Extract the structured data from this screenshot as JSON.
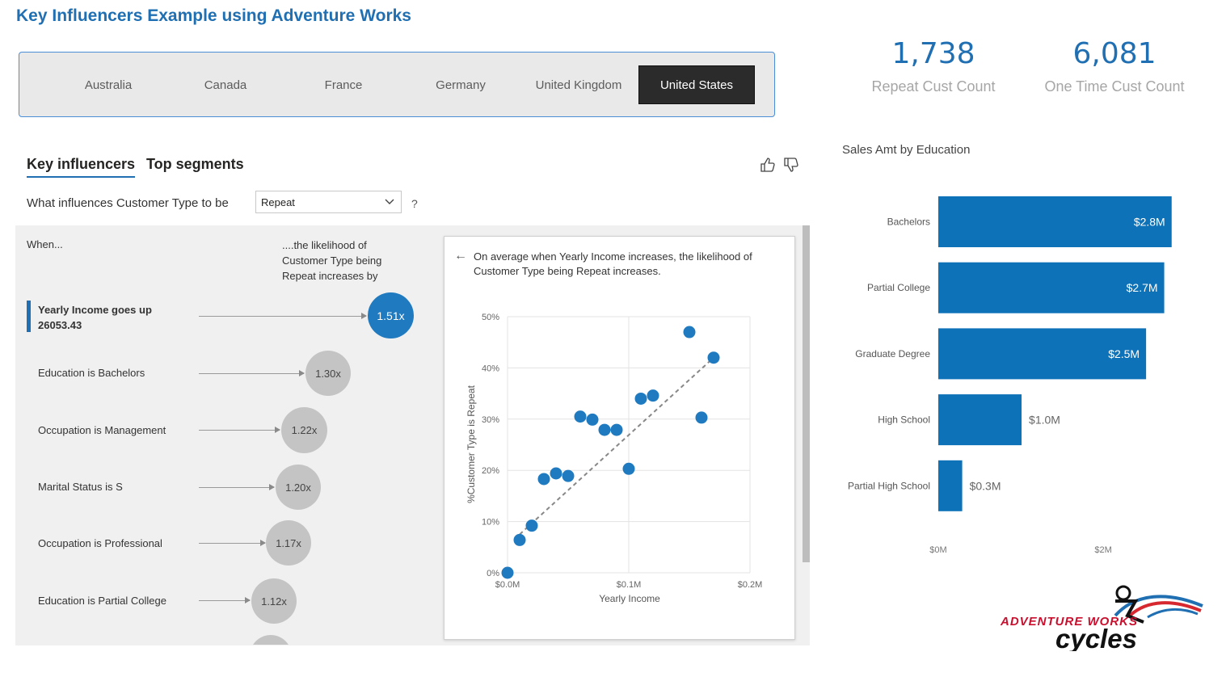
{
  "title": "Key Influencers Example using Adventure Works",
  "slicer": {
    "items": [
      "Australia",
      "Canada",
      "France",
      "Germany",
      "United Kingdom",
      "United States"
    ],
    "selected": "United States"
  },
  "kpis": [
    {
      "value": "1,738",
      "label": "Repeat Cust Count"
    },
    {
      "value": "6,081",
      "label": "One Time Cust Count"
    }
  ],
  "key_influencers": {
    "tabs": [
      "Key influencers",
      "Top segments"
    ],
    "active_tab": "Key influencers",
    "question": "What influences Customer Type to be",
    "dropdown_value": "Repeat",
    "help": "?",
    "feedback_icons": [
      "thumbs-up-icon",
      "thumbs-down-icon"
    ],
    "col_when": "When...",
    "col_likelihood": "....the likelihood of Customer Type being Repeat increases by",
    "items": [
      {
        "line1": "Yearly Income goes up",
        "line2": "26053.43",
        "value": "1.51x",
        "selected": true
      },
      {
        "line1": "Education is Bachelors",
        "line2": "",
        "value": "1.30x",
        "selected": false
      },
      {
        "line1": "Occupation is Management",
        "line2": "",
        "value": "1.22x",
        "selected": false
      },
      {
        "line1": "Marital Status is S",
        "line2": "",
        "value": "1.20x",
        "selected": false
      },
      {
        "line1": "Occupation is Professional",
        "line2": "",
        "value": "1.17x",
        "selected": false
      },
      {
        "line1": "Education is Partial College",
        "line2": "",
        "value": "1.12x",
        "selected": false
      }
    ],
    "detail_text": "On average when Yearly Income increases, the likelihood of Customer Type being Repeat increases."
  },
  "chart_data": [
    {
      "type": "scatter",
      "xlabel": "Yearly Income",
      "ylabel": "%Customer Type is Repeat",
      "x_ticks": [
        "$0.0M",
        "$0.1M",
        "$0.2M"
      ],
      "y_ticks": [
        "0%",
        "10%",
        "20%",
        "30%",
        "40%",
        "50%"
      ],
      "xlim": [
        0,
        200000
      ],
      "ylim": [
        0,
        50
      ],
      "grid": true,
      "trendline": {
        "style": "dashed",
        "from": [
          10000,
          7.5
        ],
        "to": [
          170000,
          42
        ]
      },
      "points": [
        {
          "x": 0,
          "y": 0
        },
        {
          "x": 10000,
          "y": 6.4
        },
        {
          "x": 20000,
          "y": 9.2
        },
        {
          "x": 30000,
          "y": 18.3
        },
        {
          "x": 40000,
          "y": 19.4
        },
        {
          "x": 50000,
          "y": 18.9
        },
        {
          "x": 60000,
          "y": 30.5
        },
        {
          "x": 70000,
          "y": 29.9
        },
        {
          "x": 80000,
          "y": 27.9
        },
        {
          "x": 90000,
          "y": 27.9
        },
        {
          "x": 100000,
          "y": 20.3
        },
        {
          "x": 110000,
          "y": 34.0
        },
        {
          "x": 120000,
          "y": 34.6
        },
        {
          "x": 150000,
          "y": 47.0
        },
        {
          "x": 160000,
          "y": 30.3
        },
        {
          "x": 170000,
          "y": 42.0
        }
      ],
      "point_color": "#1f7ac0"
    },
    {
      "type": "bar",
      "orientation": "horizontal",
      "title": "Sales Amt by Education",
      "categories": [
        "Bachelors",
        "Partial College",
        "Graduate Degree",
        "High School",
        "Partial High School"
      ],
      "values": [
        2.83,
        2.74,
        2.52,
        1.01,
        0.29
      ],
      "labels": [
        "$2.8M",
        "$2.7M",
        "$2.5M",
        "$1.0M",
        "$0.3M"
      ],
      "x_ticks": [
        "$0M",
        "$2M"
      ],
      "xlim": [
        0,
        3.2
      ],
      "units": "millions USD",
      "color": "#0e72b8"
    }
  ],
  "logo": {
    "text_top": "ADVENTURE WORKS",
    "text_bottom": "cycles"
  },
  "colors": {
    "accent": "#1f6fb2",
    "bar": "#0e72b8",
    "bubble_active": "#1f7ac0",
    "bubble": "#c4c4c4"
  }
}
